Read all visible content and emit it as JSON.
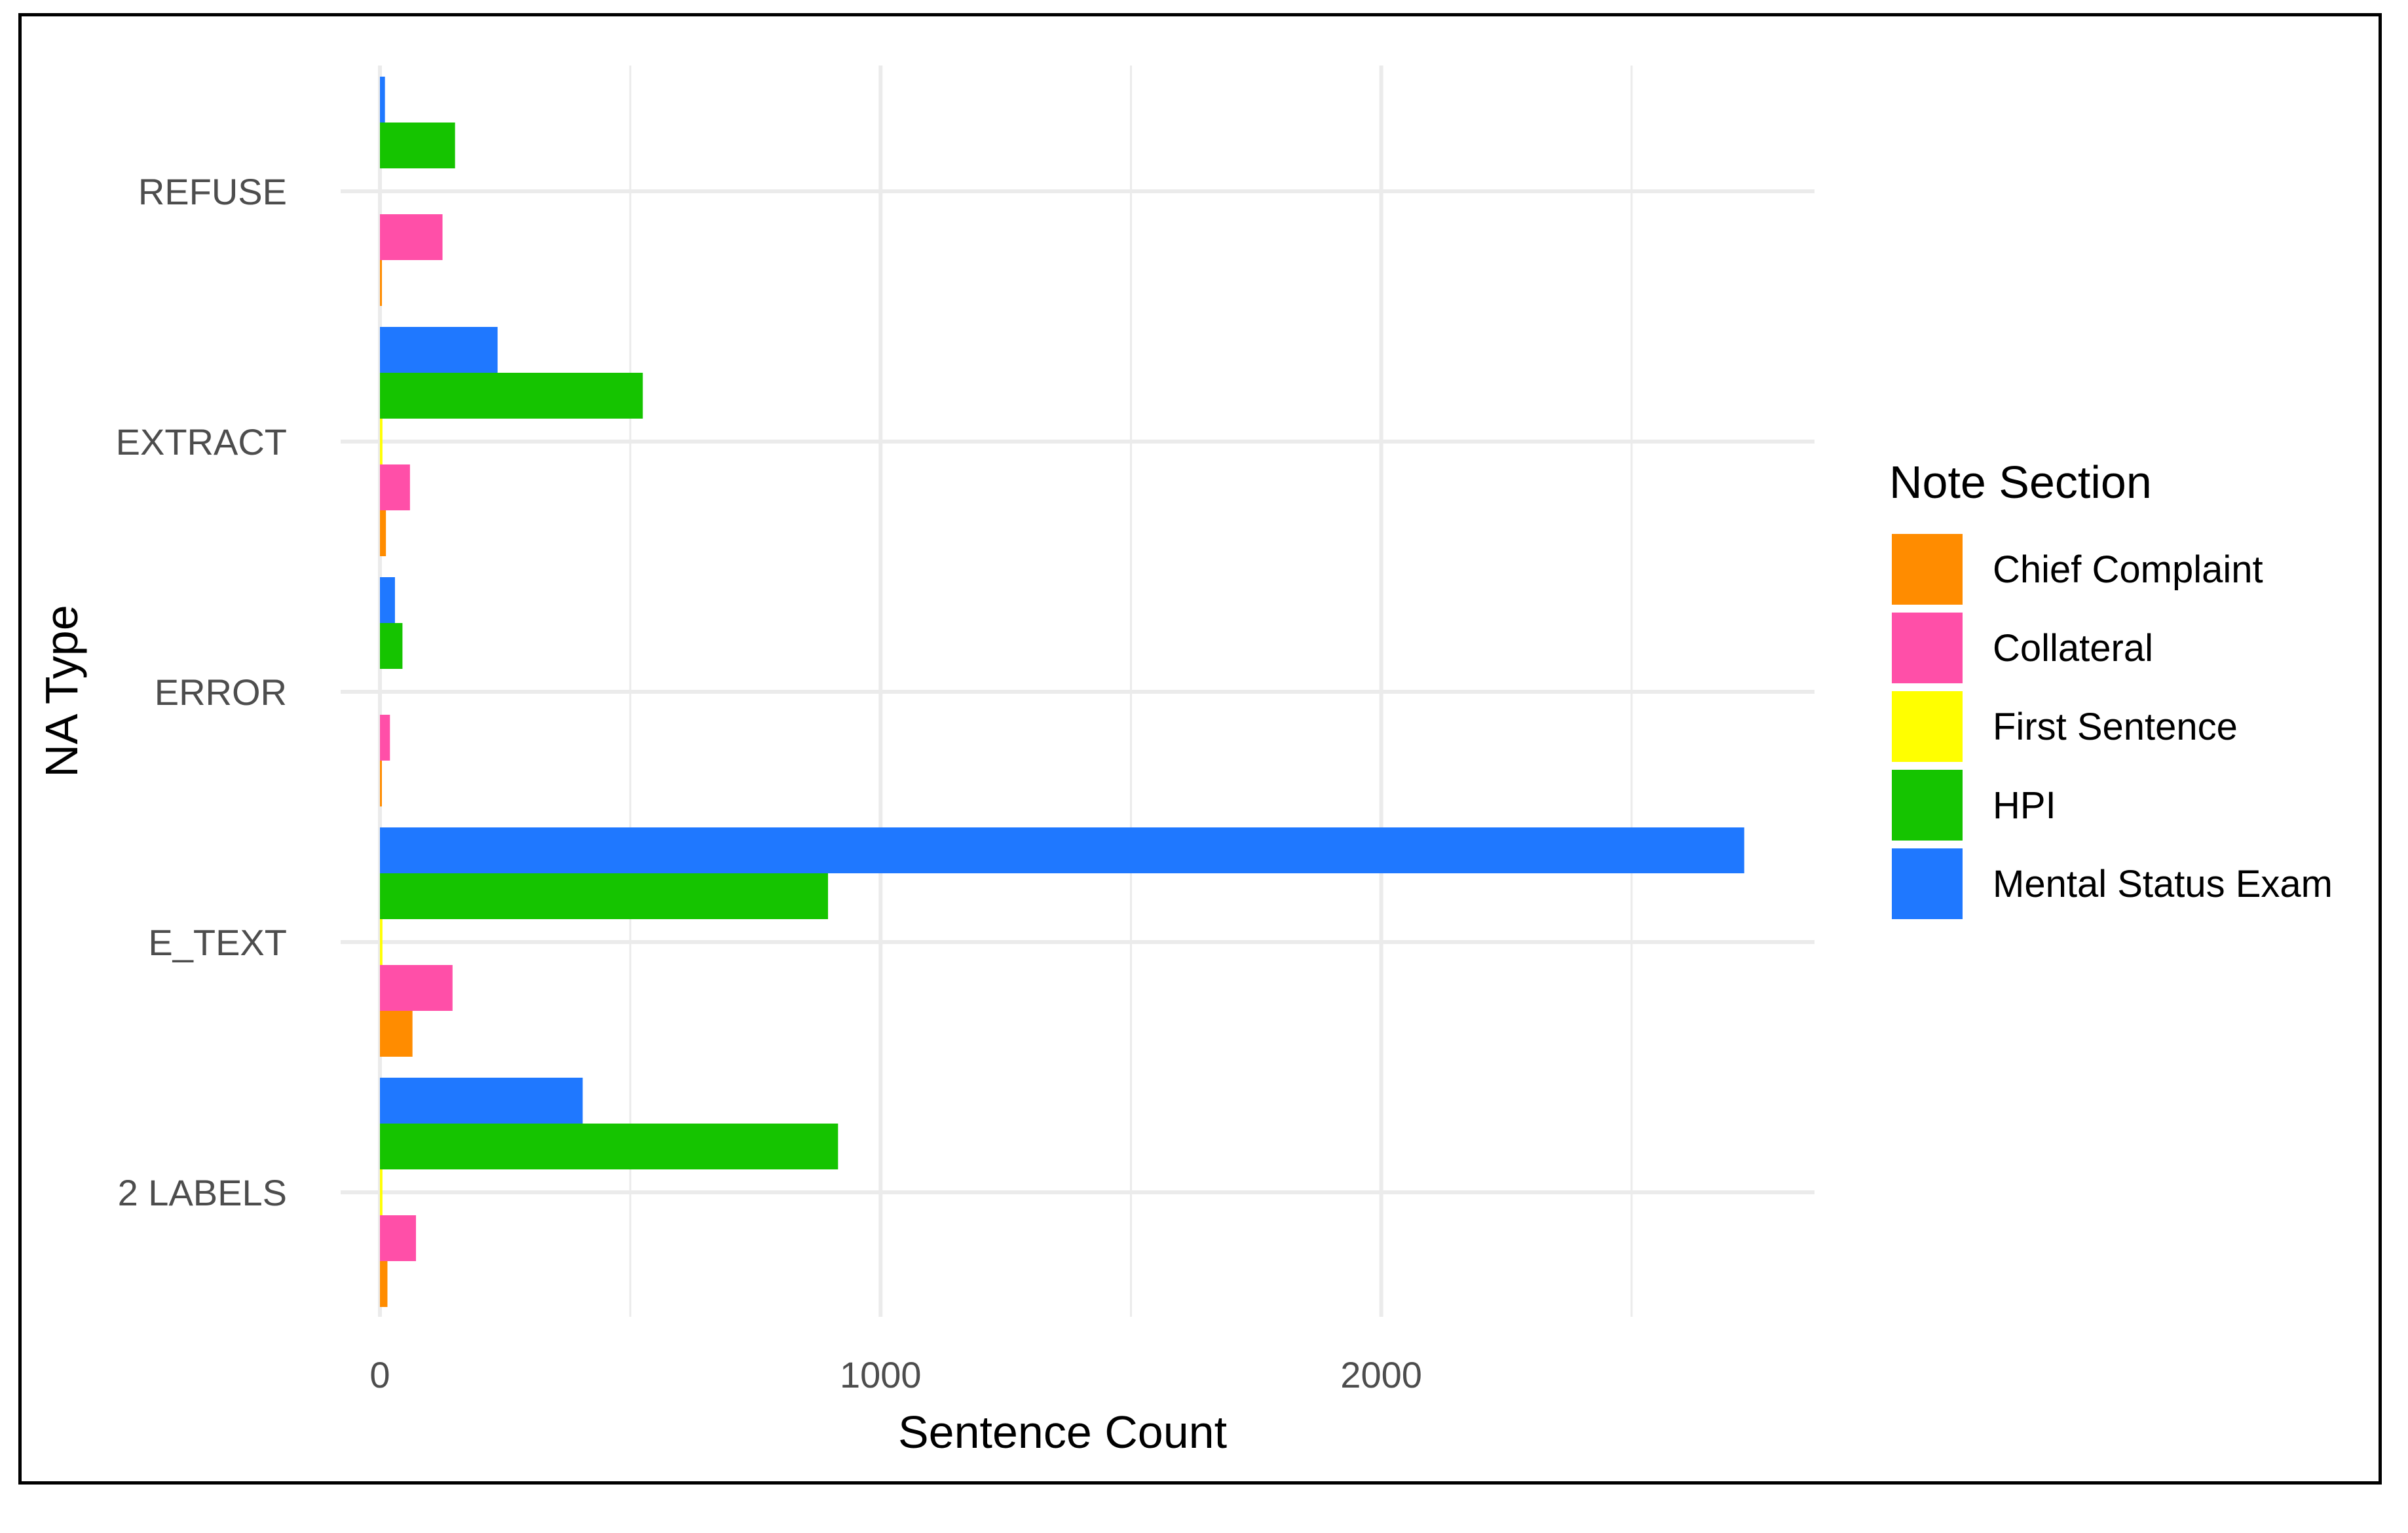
{
  "chart_data": {
    "type": "bar",
    "orientation": "horizontal",
    "xlabel": "Sentence Count",
    "ylabel": "NA Type",
    "xlim": [
      0,
      2850
    ],
    "xticks": [
      0,
      1000,
      2000
    ],
    "grid": true,
    "categories": [
      "REFUSE",
      "EXTRACT",
      "ERROR",
      "E_TEXT",
      "2 LABELS"
    ],
    "legend": {
      "title": "Note Section",
      "position": "right"
    },
    "series": [
      {
        "name": "Mental Status Exam",
        "color": "#1f78ff",
        "values": [
          10,
          235,
          30,
          2725,
          405
        ]
      },
      {
        "name": "HPI",
        "color": "#15c400",
        "values": [
          150,
          525,
          45,
          895,
          915
        ]
      },
      {
        "name": "First Sentence",
        "color": "#ffff00",
        "values": [
          0,
          5,
          0,
          5,
          5
        ]
      },
      {
        "name": "Collateral",
        "color": "#ff4fa8",
        "values": [
          125,
          60,
          20,
          145,
          72
        ]
      },
      {
        "name": "Chief Complaint",
        "color": "#ff8c00",
        "values": [
          4,
          12,
          3,
          65,
          15
        ]
      }
    ],
    "legend_order": [
      "Chief Complaint",
      "Collateral",
      "First Sentence",
      "HPI",
      "Mental Status Exam"
    ]
  }
}
